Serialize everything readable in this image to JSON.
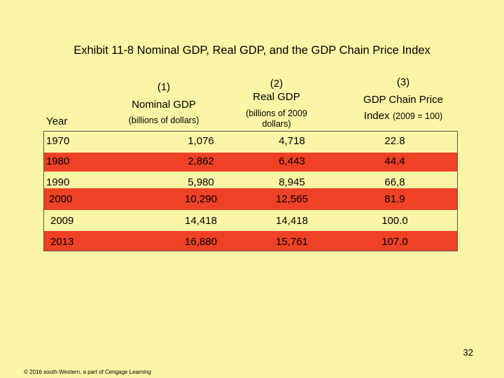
{
  "title": "Exhibit 11-8 Nominal GDP, Real GDP, and the GDP Chain Price Index",
  "headers": {
    "year": "Year",
    "col1_num": "(1)",
    "col1_name": "Nominal GDP",
    "col1_unit": "(billions of dollars)",
    "col2_num": "(2)",
    "col2_name": "Real GDP",
    "col2_unit_line1": "(billions of 2009",
    "col2_unit_line2": "dollars)",
    "col3_num": "(3)",
    "col3_name": "GDP Chain Price",
    "col3_index": "Index",
    "col3_unit": "(2009 = 100)"
  },
  "rows": [
    {
      "year": "1970",
      "nominal": "1,076",
      "real": "4,718",
      "index": "22.8"
    },
    {
      "year": "1980",
      "nominal": "2,862",
      "real": "6,443",
      "index": "44.4"
    },
    {
      "year": "1990",
      "nominal": "5,980",
      "real": "8,945",
      "index": "66,8"
    },
    {
      "year": "2000",
      "nominal": "10,290",
      "real": "12,565",
      "index": "81.9"
    },
    {
      "year": "2009",
      "nominal": "14,418",
      "real": "14,418",
      "index": "100.0"
    },
    {
      "year": "2013",
      "nominal": "16,880",
      "real": "15,761",
      "index": "107.0"
    }
  ],
  "page_number": "32",
  "footer": "© 2016 south-Western, a part of Cengage Learning",
  "colors": {
    "background": "#fbf6a6",
    "row_highlight": "#ef4125"
  }
}
